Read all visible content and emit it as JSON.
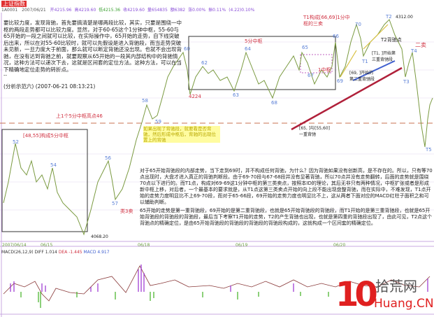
{
  "header": {
    "title": "上证指数",
    "code": "1A0001",
    "date": "2007/06/21",
    "fields": [
      {
        "text": "开4215.96",
        "color": "#8a4fd8"
      },
      {
        "text": "高4219.60",
        "color": "#8a4fd8"
      },
      {
        "text": "低4215.36",
        "color": "#3aa030"
      },
      {
        "text": "收4219.60",
        "color": "#8a4fd8"
      },
      {
        "text": "量654835",
        "color": "#8a4fd8"
      },
      {
        "text": "额6382",
        "color": "#8a4fd8"
      },
      {
        "text": "涨0.00%",
        "color": "#8a4fd8"
      },
      {
        "text": "振0.11%",
        "color": "#8a4fd8"
      },
      {
        "text": "(4.22)0.10%",
        "color": "#8a4fd8"
      }
    ]
  },
  "notes": {
    "top": "要比较力度，发现背驰，首先要搞清楚是哪两段比较，其实，只要是围绕一中枢的两段走势都可以比较力度。显然，对于60-65这个1分钟中枢，55-60与65开始的一段之间就可以比较，在实际操作中，65开始的走势，自下线突破后出来，所以在对55-60比较时，就可以先假设是进入背驰段，而当走势突破未见新，一旦力度大于前面，那么就可以断定背驰还没出现。也就不会出现背驰，在没有达到背驰之前，就要观察从65开始的一段其内部结构中的背驰情况，这种方法可以递次下去，这就是区间套的定位方法。这种方法，可以在当下精确地定位走势的转折点。",
    "tag": "--",
    "signature": "(分析示范六) (2007-06-21 08:13:21)",
    "mid1": "对于65开始背驰段的内部走势，当下走到69时，并不构成任何背驰，为什么？因为背驰如果没有创新高，是不存在的。所以，只有等70点出现时，大盘才进入真正的背驰判断段。由于69-70段与67-68段并没有显著背驰，所以70点并没有走势翻转，后面的走势就是围绕70点以下进行的。而T1点，构成对69-69这1分钟中枢的第三类卖点，按照本ID的理论，其后无非只有两种情况，中枢扩张或者是形成新中枢上移，对后者，一个最基本的要求就是，从T1点这第三类卖点开始的向上段不能出现盘整背驰，而在实际中，不难发现，T1点开始的走势力度明显比不上69-70段，而对于65-66段，69开始的走势力度也明显比不上，这从两者下面对应的MACD红柱子面积之和可以辅助判断。",
    "mid2": "65开始的走势是第一重背驰段，69开始的是第二重背驰段，也就是65开始背驰段的背驰段，而T1开始的是第三重背驰段，也就是65开始背驰段的背驰段的背驰段，最后当下考察T1开始的走势，T2的产生背驰也出现，也就是第四重的背驰段出现了，由此可见，T2点这个背驰点的精确定位，是由65开始背驰段的背驰段的背驰段的背驰段构成的，这就构成一个区间套的精确定位。"
  },
  "labels": {
    "prev_high": "上1个5分中枢高点46",
    "zs5": "[48,55]构成5分中枢",
    "fivemin": "5分中枢",
    "onemin": "1中枢",
    "p4224": "4224",
    "p4068": "4068.20",
    "p4312": "4312.00",
    "sell3": "类3卖",
    "ysell": "二卖",
    "t1": "T1构成[66,69]1分中枢的三卖",
    "t2": "T2背驰点",
    "bz1": "[65, ]与[55,60]",
    "bz1b": "一重背驰",
    "bz2": "[69, ]开始的",
    "bz2b": "第二重背驰段",
    "bz3": "[T1, ]开始第",
    "bz3b": "三重背驰段",
    "yellow": "如果出现了背驰段，就要看是否背驰，然后形成中枢后，背驰的出现位置上的背驰",
    "nums": [
      "52",
      "54",
      "56",
      "57",
      "58",
      "59",
      "60",
      "62",
      "63",
      "64",
      "65",
      "66",
      "67",
      "68",
      "69",
      "70",
      "T1",
      "T2",
      "T3",
      "T4",
      "T5"
    ]
  },
  "axis": {
    "dates": [
      "2007/06/14",
      "06/15",
      "06/18",
      "06/19",
      "06/20"
    ]
  },
  "macd": {
    "name": "MACD(26,12,9)",
    "diff": "DIFF 1.014",
    "dea": "DEA -1.445",
    "macd": "MACD 4.917"
  },
  "logo": {
    "cn": "拾荒网",
    "en": "Huang.CN",
    "num": "10"
  }
}
